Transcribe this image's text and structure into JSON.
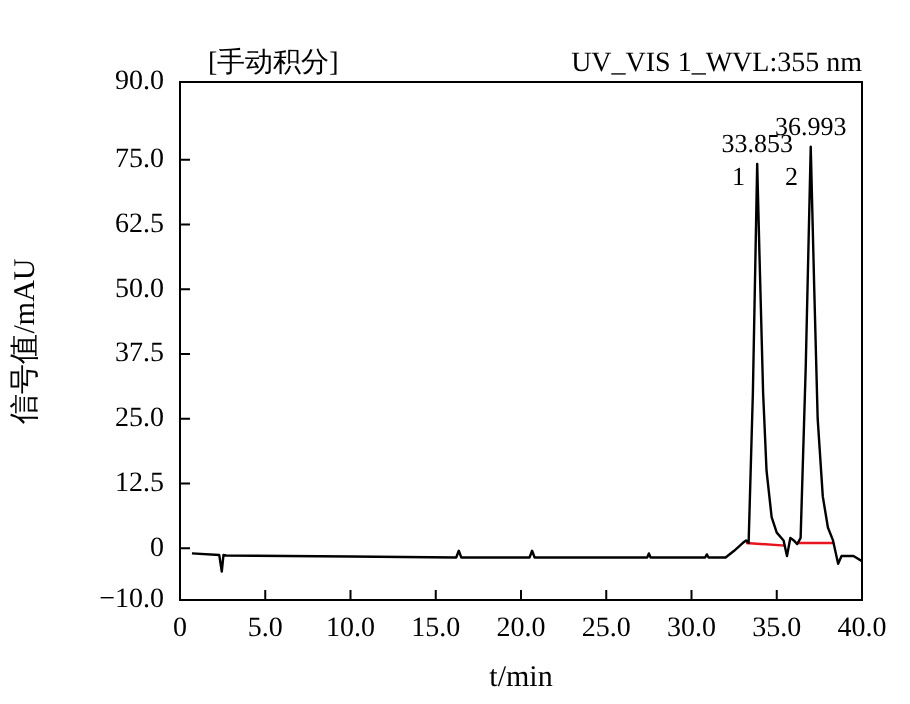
{
  "chart_data": {
    "type": "line",
    "title": "UV_VIS 1_WVL:355 nm",
    "subtitle": "[手动积分]",
    "xlabel": "t/min",
    "ylabel": "信号值/mAU",
    "xlim": [
      0,
      40
    ],
    "xticks": [
      0,
      {
        "value": 5,
        "label": "5.0"
      },
      {
        "value": 10,
        "label": "10.0"
      },
      {
        "value": 15,
        "label": "15.0"
      },
      {
        "value": 20,
        "label": "20.0"
      },
      {
        "value": 25,
        "label": "25.0"
      },
      {
        "value": 30,
        "label": "30.0"
      },
      {
        "value": 35,
        "label": "35.0"
      },
      {
        "value": 40,
        "label": "40.0"
      }
    ],
    "ylim": [
      -10,
      90
    ],
    "yticks": [
      {
        "value": -10,
        "label": "−10.0"
      },
      0,
      12.5,
      {
        "value": 25,
        "label": "25.0"
      },
      37.5,
      {
        "value": 50,
        "label": "50.0"
      },
      62.5,
      {
        "value": 75,
        "label": "75.0"
      },
      {
        "value": 90,
        "label": "90.0"
      }
    ],
    "grid": false,
    "legend": false,
    "marker": "none",
    "line_style": "solid",
    "series": [
      {
        "color": "#000000",
        "x": [
          0.7,
          2.3,
          2.45,
          2.55,
          2.7,
          10,
          16.2,
          16.35,
          16.5,
          20.5,
          20.65,
          20.8,
          27.4,
          27.5,
          27.6,
          30.8,
          30.9,
          31,
          32,
          32.5,
          33,
          33.2,
          33.35,
          33.6,
          33.853,
          34,
          34.2,
          34.4,
          34.7,
          35,
          35.4,
          35.6,
          35.8,
          36,
          36.2,
          36.4,
          36.7,
          36.993,
          37.2,
          37.4,
          37.7,
          38,
          38.3,
          38.6,
          38.8,
          39.5,
          40
        ],
        "values": [
          -1,
          -1.3,
          -4.5,
          -1.3,
          -1.4,
          -1.6,
          -1.8,
          -0.5,
          -1.8,
          -1.8,
          -0.5,
          -1.8,
          -1.8,
          -1,
          -1.8,
          -1.8,
          -1.2,
          -1.8,
          -1.8,
          -0.5,
          1,
          1.5,
          1,
          30,
          74.2,
          55,
          30,
          15,
          6,
          3,
          1.5,
          -1.5,
          2,
          1.5,
          0.8,
          2,
          35,
          77.5,
          50,
          25,
          10,
          4,
          1.5,
          -3,
          -1.5,
          -1.5,
          -2.5
        ]
      },
      {
        "color": "#e8141e",
        "x": [
          33.2,
          35.5
        ],
        "values": [
          1,
          0.5
        ]
      },
      {
        "color": "#e8141e",
        "x": [
          36.3,
          38.3
        ],
        "values": [
          1,
          1
        ]
      }
    ],
    "annotations": [
      {
        "text": "33.853",
        "x": 33.853,
        "y": 74.2
      },
      {
        "text": "36.993",
        "x": 36.993,
        "y": 77.5
      },
      {
        "text": "1",
        "x": 33.84,
        "y": 71.5
      },
      {
        "text": "2",
        "x": 36.95,
        "y": 71.5
      }
    ]
  }
}
